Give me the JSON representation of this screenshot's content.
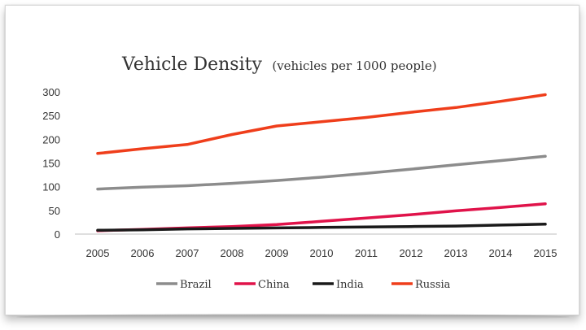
{
  "chart_data": {
    "type": "line",
    "title": "Vehicle Density",
    "subtitle": "(vehicles per 1000 people)",
    "xlabel": "",
    "ylabel": "",
    "categories": [
      "2005",
      "2006",
      "2007",
      "2008",
      "2009",
      "2010",
      "2011",
      "2012",
      "2013",
      "2014",
      "2015"
    ],
    "ylim": [
      0,
      300
    ],
    "yticks": [
      "0",
      "50",
      "100",
      "150",
      "200",
      "250",
      "300"
    ],
    "grid": false,
    "legend_position": "bottom",
    "series": [
      {
        "name": "Brazil",
        "color": "#8c8c8c",
        "values": [
          95,
          99,
          102,
          107,
          113,
          120,
          128,
          137,
          146,
          155,
          164
        ]
      },
      {
        "name": "China",
        "color": "#e0134a",
        "values": [
          7,
          10,
          13,
          16,
          20,
          27,
          34,
          41,
          49,
          56,
          64
        ]
      },
      {
        "name": "India",
        "color": "#1a1a1a",
        "values": [
          8,
          9,
          11,
          12,
          13,
          14,
          15,
          16,
          17,
          19,
          21
        ]
      },
      {
        "name": "Russia",
        "color": "#ef3e1b",
        "values": [
          170,
          180,
          189,
          210,
          228,
          237,
          246,
          257,
          267,
          280,
          294
        ]
      }
    ]
  }
}
